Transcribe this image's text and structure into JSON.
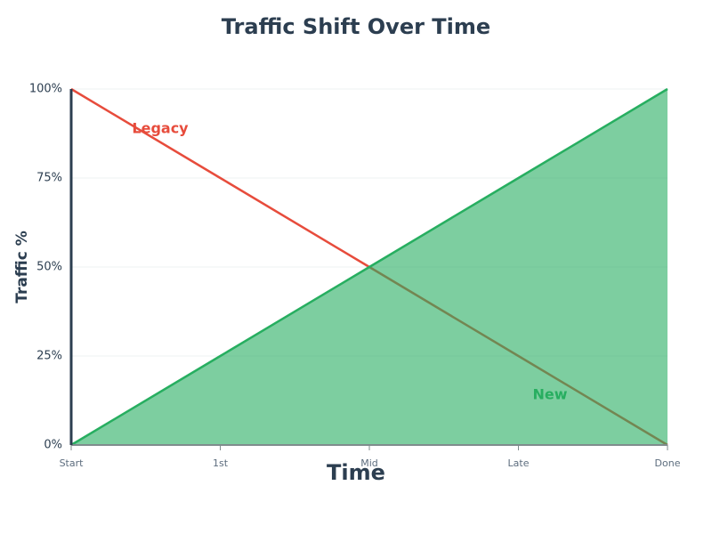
{
  "chart_data": {
    "type": "line",
    "title": "Traffic Shift Over Time",
    "x_label": "Time",
    "y_label": "Traffic %",
    "categories": [
      "Start",
      "1st",
      "Mid",
      "Late",
      "Done"
    ],
    "series": [
      {
        "name": "Legacy",
        "color": "#e74c3c",
        "values": [
          100,
          75,
          50,
          25,
          0
        ],
        "fill": false
      },
      {
        "name": "New",
        "color": "#27ae60",
        "values": [
          0,
          25,
          50,
          75,
          100
        ],
        "fill": true
      }
    ],
    "ylim": [
      0,
      100
    ],
    "yticks": [
      {
        "value": 0,
        "label": "0%"
      },
      {
        "value": 25,
        "label": "25%"
      },
      {
        "value": 50,
        "label": "50%"
      },
      {
        "value": 75,
        "label": "75%"
      },
      {
        "value": 100,
        "label": "100%"
      }
    ],
    "grid": true
  }
}
